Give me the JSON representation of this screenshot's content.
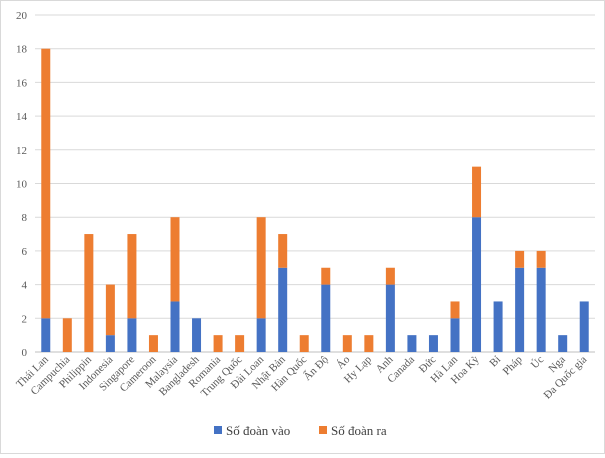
{
  "chart_data": {
    "type": "bar",
    "stacked": true,
    "categories": [
      "Thái Lan",
      "Campuchia",
      "Philippin",
      "Indonesia",
      "Singapore",
      "Cameroon",
      "Malaysia",
      "Bangladesh",
      "Romania",
      "Trung Quốc",
      "Đài Loan",
      "Nhật Bản",
      "Hàn Quốc",
      "Ấn Độ",
      "Áo",
      "Hy Lạp",
      "Anh",
      "Canada",
      "Đức",
      "Hà Lan",
      "Hoa Kỳ",
      "Bỉ",
      "Pháp",
      "Úc",
      "Nga",
      "Đa Quốc gia"
    ],
    "series": [
      {
        "name": "Số đoàn vào",
        "color": "#4472c4",
        "values": [
          2,
          0,
          0,
          1,
          2,
          0,
          3,
          2,
          0,
          0,
          2,
          5,
          0,
          4,
          0,
          0,
          4,
          1,
          1,
          2,
          8,
          3,
          5,
          5,
          1,
          3
        ]
      },
      {
        "name": "Số đoàn ra",
        "color": "#ed7d31",
        "values": [
          16,
          2,
          7,
          3,
          5,
          1,
          5,
          0,
          1,
          1,
          6,
          2,
          1,
          1,
          1,
          1,
          1,
          0,
          0,
          1,
          3,
          0,
          1,
          1,
          0,
          0
        ]
      }
    ],
    "ylim": [
      0,
      20
    ],
    "yticks": [
      0,
      2,
      4,
      6,
      8,
      10,
      12,
      14,
      16,
      18,
      20
    ],
    "grid": true,
    "legend_position": "bottom"
  }
}
